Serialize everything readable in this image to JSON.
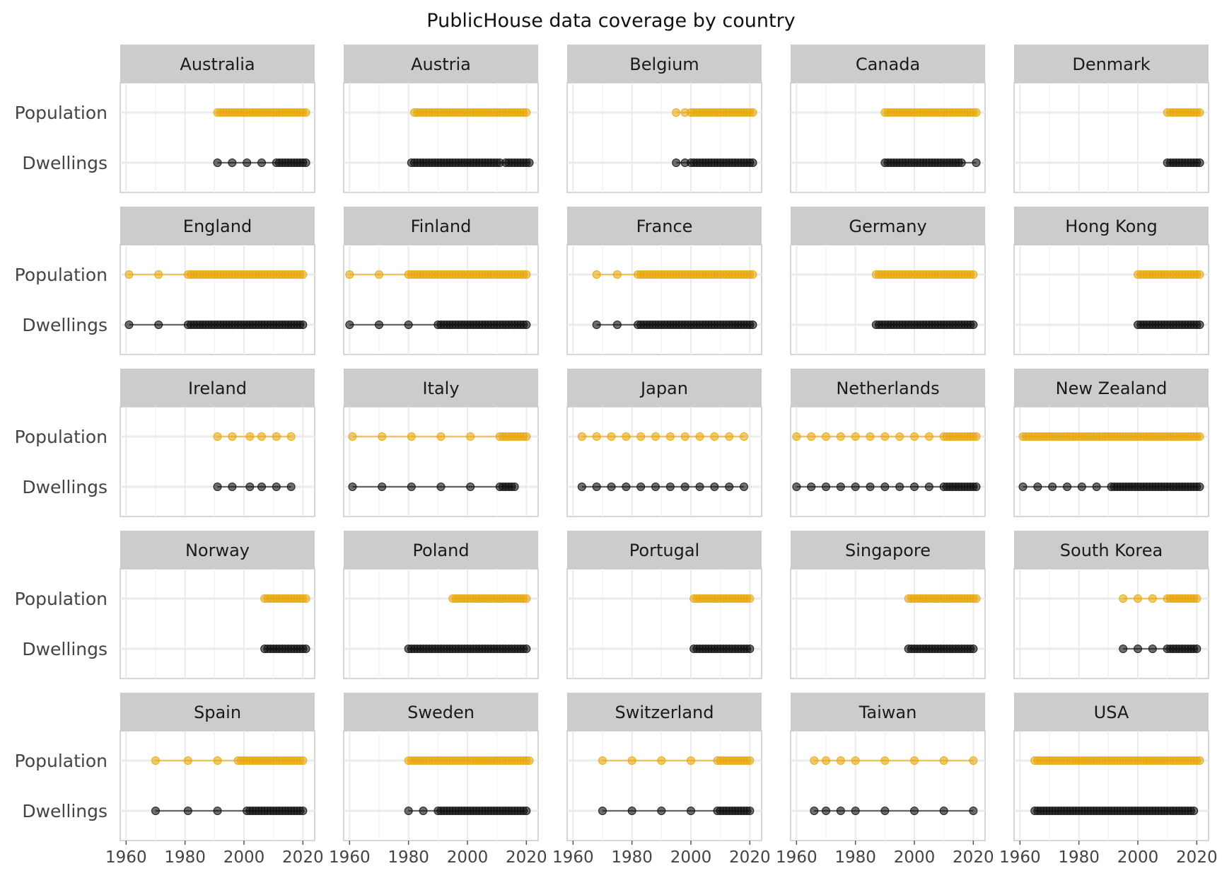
{
  "chart_data": {
    "type": "scatter",
    "title": "PublicHouse data coverage by country",
    "y_categories": [
      "Population",
      "Dwellings"
    ],
    "x_ticks": [
      "1960",
      "1980",
      "2000",
      "2020"
    ],
    "xlim": [
      1958,
      2024
    ],
    "colors": {
      "Population": "#E8A90E",
      "Dwellings": "#111111",
      "strip": "#CCCCCC",
      "grid": "#EBEBEB"
    },
    "panels": [
      {
        "name": "Australia",
        "Population": [
          [
            1991,
            2021
          ]
        ],
        "Dwellings": [
          1991,
          1996,
          2001,
          2006,
          [
            2011,
            2021
          ]
        ]
      },
      {
        "name": "Austria",
        "Population": [
          [
            1982,
            2020
          ]
        ],
        "Dwellings": [
          [
            1981,
            2011
          ],
          [
            2013,
            2021
          ]
        ]
      },
      {
        "name": "Belgium",
        "Population": [
          1995,
          1998,
          [
            2000,
            2021
          ]
        ],
        "Dwellings": [
          1995,
          1998,
          [
            2000,
            2021
          ]
        ]
      },
      {
        "name": "Canada",
        "Population": [
          [
            1990,
            2021
          ]
        ],
        "Dwellings": [
          [
            1990,
            2016
          ],
          2021
        ]
      },
      {
        "name": "Denmark",
        "Population": [
          [
            2010,
            2021
          ]
        ],
        "Dwellings": [
          [
            2010,
            2021
          ]
        ]
      },
      {
        "name": "England",
        "Population": [
          1961,
          1971,
          [
            1981,
            2020
          ]
        ],
        "Dwellings": [
          1961,
          1971,
          [
            1981,
            2020
          ]
        ]
      },
      {
        "name": "Finland",
        "Population": [
          1960,
          1970,
          [
            1980,
            2020
          ]
        ],
        "Dwellings": [
          1960,
          1970,
          1980,
          [
            1990,
            2020
          ]
        ]
      },
      {
        "name": "France",
        "Population": [
          1968,
          1975,
          [
            1982,
            2021
          ]
        ],
        "Dwellings": [
          1968,
          1975,
          [
            1982,
            2021
          ]
        ]
      },
      {
        "name": "Germany",
        "Population": [
          [
            1987,
            2020
          ]
        ],
        "Dwellings": [
          [
            1987,
            2020
          ]
        ]
      },
      {
        "name": "Hong Kong",
        "Population": [
          [
            2000,
            2021
          ]
        ],
        "Dwellings": [
          [
            2000,
            2021
          ]
        ]
      },
      {
        "name": "Ireland",
        "Population": [
          1991,
          1996,
          2002,
          2006,
          2011,
          2016
        ],
        "Dwellings": [
          1991,
          1996,
          2002,
          2006,
          2011,
          2016
        ]
      },
      {
        "name": "Italy",
        "Population": [
          1961,
          1971,
          1981,
          1991,
          2001,
          [
            2011,
            2020
          ]
        ],
        "Dwellings": [
          1961,
          1971,
          1981,
          1991,
          2001,
          [
            2011,
            2016
          ]
        ]
      },
      {
        "name": "Japan",
        "Population": [
          1963,
          1968,
          1973,
          1978,
          1983,
          1988,
          1993,
          1998,
          2003,
          2008,
          2013,
          2018
        ],
        "Dwellings": [
          1963,
          1968,
          1973,
          1978,
          1983,
          1988,
          1993,
          1998,
          2003,
          2008,
          2013,
          2018
        ]
      },
      {
        "name": "Netherlands",
        "Population": [
          1960,
          1965,
          1970,
          1975,
          1980,
          1985,
          1990,
          1995,
          2000,
          2005,
          [
            2010,
            2021
          ]
        ],
        "Dwellings": [
          1960,
          1965,
          1970,
          1975,
          1980,
          1985,
          1990,
          1995,
          2000,
          2005,
          [
            2010,
            2021
          ]
        ]
      },
      {
        "name": "New Zealand",
        "Population": [
          [
            1961,
            2021
          ]
        ],
        "Dwellings": [
          1961,
          1966,
          1971,
          1976,
          1981,
          1986,
          [
            1991,
            2021
          ]
        ]
      },
      {
        "name": "Norway",
        "Population": [
          [
            2007,
            2021
          ]
        ],
        "Dwellings": [
          [
            2007,
            2021
          ]
        ]
      },
      {
        "name": "Poland",
        "Population": [
          [
            1995,
            2020
          ]
        ],
        "Dwellings": [
          [
            1980,
            2020
          ]
        ]
      },
      {
        "name": "Portugal",
        "Population": [
          [
            2001,
            2020
          ]
        ],
        "Dwellings": [
          [
            2001,
            2020
          ]
        ]
      },
      {
        "name": "Singapore",
        "Population": [
          [
            1998,
            2021
          ]
        ],
        "Dwellings": [
          [
            1998,
            2020
          ]
        ]
      },
      {
        "name": "South Korea",
        "Population": [
          1995,
          2000,
          2005,
          [
            2010,
            2020
          ]
        ],
        "Dwellings": [
          1995,
          2000,
          2005,
          [
            2010,
            2020
          ]
        ]
      },
      {
        "name": "Spain",
        "Population": [
          1970,
          1981,
          1991,
          [
            1998,
            2020
          ]
        ],
        "Dwellings": [
          1970,
          1981,
          1991,
          [
            2001,
            2020
          ]
        ]
      },
      {
        "name": "Sweden",
        "Population": [
          [
            1980,
            2021
          ]
        ],
        "Dwellings": [
          1980,
          1985,
          [
            1990,
            2020
          ]
        ]
      },
      {
        "name": "Switzerland",
        "Population": [
          1970,
          1980,
          1990,
          2000,
          [
            2009,
            2020
          ]
        ],
        "Dwellings": [
          1970,
          1980,
          1990,
          2000,
          [
            2009,
            2020
          ]
        ]
      },
      {
        "name": "Taiwan",
        "Population": [
          1966,
          1970,
          1975,
          1980,
          1990,
          2000,
          2010,
          2020
        ],
        "Dwellings": [
          1966,
          1970,
          1975,
          1980,
          1990,
          2000,
          2010,
          2020
        ]
      },
      {
        "name": "USA",
        "Population": [
          [
            1965,
            2021
          ]
        ],
        "Dwellings": [
          [
            1965,
            2019
          ]
        ]
      }
    ]
  }
}
